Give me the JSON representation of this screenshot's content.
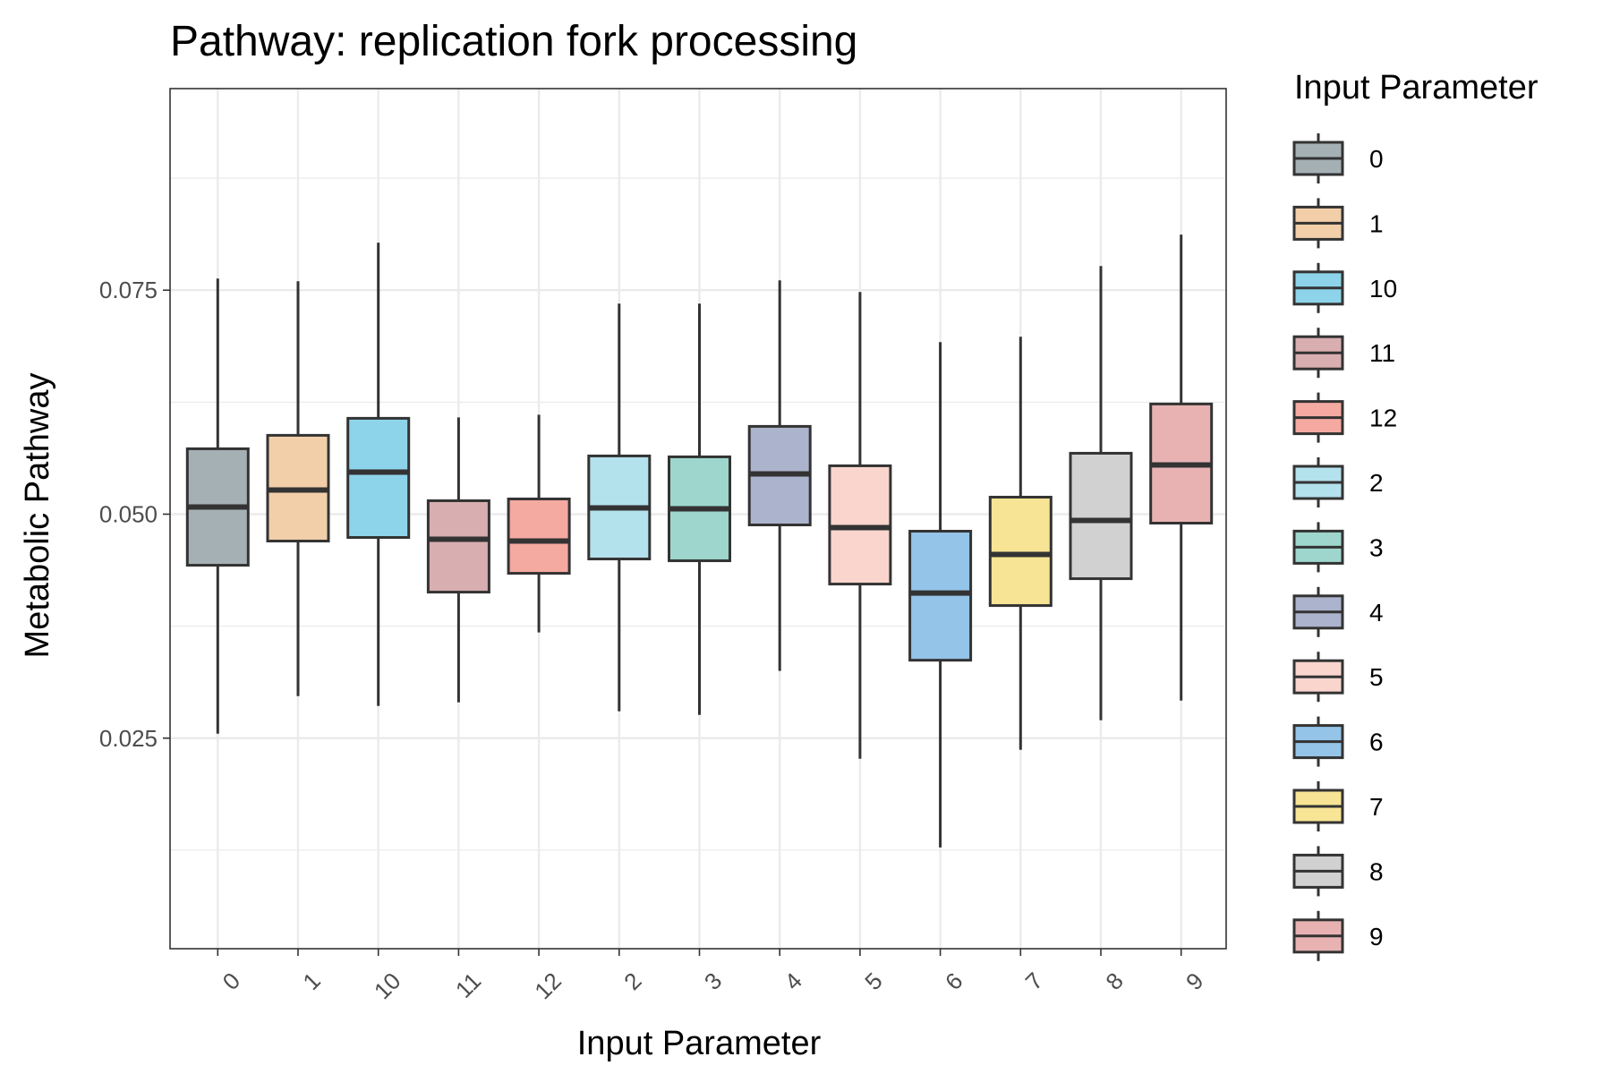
{
  "chart_data": {
    "type": "boxplot",
    "title": "Pathway: replication fork processing",
    "xlabel": "Input Parameter",
    "ylabel": "Metabolic Pathway",
    "ylim": [
      0.0015,
      0.0975
    ],
    "yticks": [
      0.025,
      0.05,
      0.075
    ],
    "ytick_labels": [
      "0.025",
      "0.050",
      "0.075"
    ],
    "grid": true,
    "legend": {
      "title": "Input Parameter",
      "position": "right"
    },
    "categories": [
      "0",
      "1",
      "10",
      "11",
      "12",
      "2",
      "3",
      "4",
      "5",
      "6",
      "7",
      "8",
      "9"
    ],
    "series": [
      {
        "category": "0",
        "min": 0.0255,
        "q1": 0.0443,
        "median": 0.0508,
        "q3": 0.0573,
        "max": 0.0763,
        "color": "#a5b0b4"
      },
      {
        "category": "1",
        "min": 0.0297,
        "q1": 0.047,
        "median": 0.0527,
        "q3": 0.0588,
        "max": 0.076,
        "color": "#f2cfa9"
      },
      {
        "category": "10",
        "min": 0.0286,
        "q1": 0.0474,
        "median": 0.0547,
        "q3": 0.0607,
        "max": 0.0803,
        "color": "#8dd3ea"
      },
      {
        "category": "11",
        "min": 0.029,
        "q1": 0.0413,
        "median": 0.0472,
        "q3": 0.0515,
        "max": 0.0608,
        "color": "#d9aeb0"
      },
      {
        "category": "12",
        "min": 0.0368,
        "q1": 0.0434,
        "median": 0.047,
        "q3": 0.0517,
        "max": 0.0611,
        "color": "#f4a9a1"
      },
      {
        "category": "2",
        "min": 0.028,
        "q1": 0.045,
        "median": 0.0507,
        "q3": 0.0565,
        "max": 0.0735,
        "color": "#b3e1ec"
      },
      {
        "category": "3",
        "min": 0.0276,
        "q1": 0.0448,
        "median": 0.0506,
        "q3": 0.0564,
        "max": 0.0735,
        "color": "#9ed6cd"
      },
      {
        "category": "4",
        "min": 0.0325,
        "q1": 0.0488,
        "median": 0.0545,
        "q3": 0.0598,
        "max": 0.0761,
        "color": "#acb3cc"
      },
      {
        "category": "5",
        "min": 0.0227,
        "q1": 0.0422,
        "median": 0.0485,
        "q3": 0.0554,
        "max": 0.0748,
        "color": "#f9d5ce"
      },
      {
        "category": "6",
        "min": 0.0128,
        "q1": 0.0337,
        "median": 0.0412,
        "q3": 0.0481,
        "max": 0.0692,
        "color": "#94c4e8"
      },
      {
        "category": "7",
        "min": 0.0237,
        "q1": 0.0398,
        "median": 0.0455,
        "q3": 0.0519,
        "max": 0.0698,
        "color": "#f7e495"
      },
      {
        "category": "8",
        "min": 0.027,
        "q1": 0.0428,
        "median": 0.0493,
        "q3": 0.0568,
        "max": 0.0777,
        "color": "#d1d1d1"
      },
      {
        "category": "9",
        "min": 0.0292,
        "q1": 0.049,
        "median": 0.0555,
        "q3": 0.0623,
        "max": 0.0812,
        "color": "#e8b2b3"
      }
    ]
  }
}
